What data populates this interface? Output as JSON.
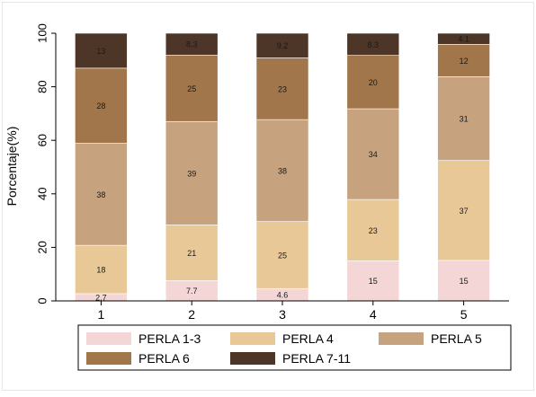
{
  "chart_data": {
    "type": "bar",
    "stacked": true,
    "categories": [
      "1",
      "2",
      "3",
      "4",
      "5"
    ],
    "ylabel": "Porcentaje(%)",
    "xlabel": "",
    "ylim": [
      0,
      100
    ],
    "yticks": [
      0,
      20,
      40,
      60,
      80,
      100
    ],
    "grid": false,
    "legend_position": "bottom",
    "series": [
      {
        "name": "PERLA 1-3",
        "color": "#f4d6d6",
        "values": [
          2.7,
          7.7,
          4.6,
          15,
          15
        ],
        "labels": [
          "2.7",
          "7.7",
          "4.6",
          "15",
          "15"
        ]
      },
      {
        "name": "PERLA 4",
        "color": "#e9c898",
        "values": [
          18,
          21,
          25,
          23,
          37
        ],
        "labels": [
          "18",
          "21",
          "25",
          "23",
          "37"
        ]
      },
      {
        "name": "PERLA 5",
        "color": "#c6a27e",
        "values": [
          38,
          39,
          38,
          34,
          31
        ],
        "labels": [
          "38",
          "39",
          "38",
          "34",
          "31"
        ]
      },
      {
        "name": "PERLA 6",
        "color": "#a1764b",
        "values": [
          28,
          25,
          23,
          20,
          12
        ],
        "labels": [
          "28",
          "25",
          "23",
          "20",
          "12"
        ]
      },
      {
        "name": "PERLA 7-11",
        "color": "#4d3628",
        "values": [
          13,
          8.3,
          9.2,
          8.3,
          4.1
        ],
        "labels": [
          "13",
          "8.3",
          "9.2",
          "8.3",
          "4.1"
        ]
      }
    ]
  }
}
